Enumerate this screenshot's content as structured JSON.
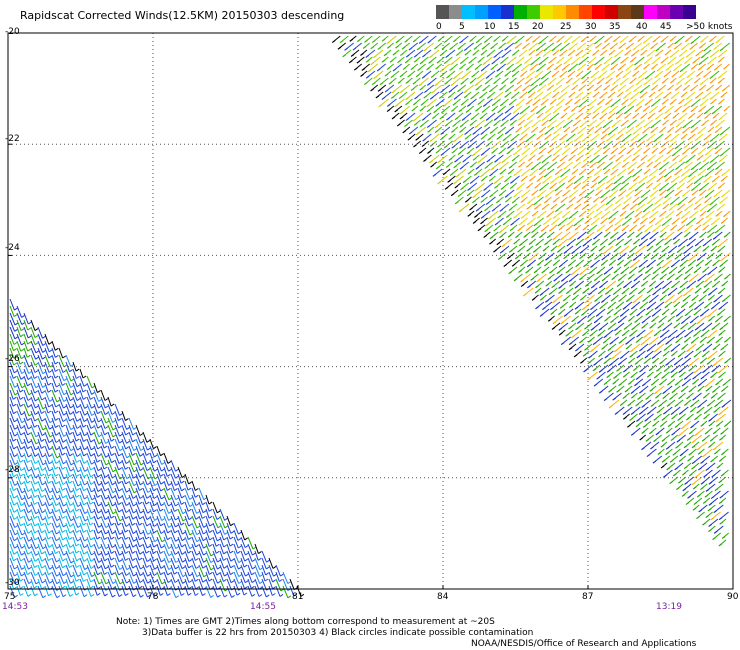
{
  "title": "Rapidscat Corrected Winds(12.5KM) 20150303 descending",
  "colorbar": {
    "colors": [
      "#555555",
      "#8c8c8c",
      "#00bfff",
      "#00a0ff",
      "#0060ff",
      "#1a2fd0",
      "#00b000",
      "#3ccc00",
      "#e8e800",
      "#ffc800",
      "#ff8c00",
      "#ff4500",
      "#ff0000",
      "#d00000",
      "#8b4513",
      "#5a3a1a",
      "#ff00ff",
      "#c000c0",
      "#6a00b0",
      "#3a0090"
    ],
    "labels": [
      "0",
      "5",
      "10",
      "15",
      "20",
      "25",
      "30",
      "35",
      "40",
      "45",
      ">50 knots"
    ]
  },
  "axes": {
    "lat_labels": [
      "-20",
      "-22",
      "-24",
      "-26",
      "-28",
      "-30"
    ],
    "lon_labels": [
      "75",
      "78",
      "81",
      "84",
      "87",
      "90"
    ],
    "lat_range": [
      -30,
      -20
    ],
    "lon_range": [
      75,
      90
    ],
    "grid": true
  },
  "times": [
    "14:53",
    "14:55",
    "13:19"
  ],
  "notes": {
    "line1": "Note: 1) Times are GMT 2)Times along bottom correspond to measurement at ~20S",
    "line2": "3)Data buffer is 22 hrs from 20150303 4) Black circles indicate possible contamination",
    "credit": "NOAA/NESDIS/Office of Research and Applications"
  }
}
